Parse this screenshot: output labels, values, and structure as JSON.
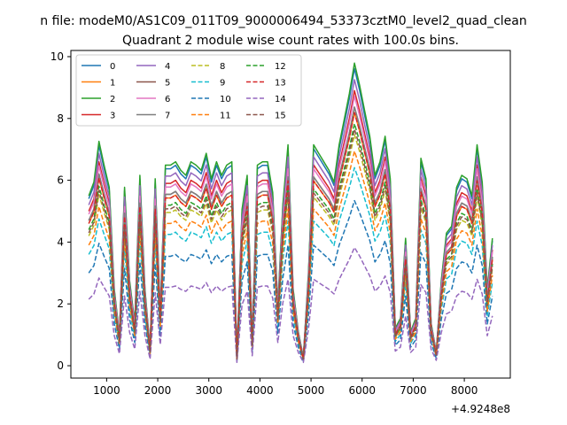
{
  "suptitle": "n file: modeM0/AS1C09_011T09_9000006494_53373cztM0_level2_quad_clean",
  "chart_data": {
    "type": "line",
    "title": "Quadrant 2 module wise count rates with 100.0s bins.",
    "x_offset_label": "+4.9248e8",
    "xlim": [
      300,
      8900
    ],
    "ylim": [
      -0.4,
      10.2
    ],
    "xticks": [
      1000,
      2000,
      3000,
      4000,
      5000,
      6000,
      7000,
      8000
    ],
    "yticks": [
      0,
      2,
      4,
      6,
      8,
      10
    ],
    "legend": {
      "position": "top-left",
      "ncol": 4
    },
    "x": [
      650,
      750,
      850,
      950,
      1050,
      1150,
      1250,
      1350,
      1450,
      1550,
      1650,
      1750,
      1850,
      1950,
      2050,
      2150,
      2250,
      2350,
      2450,
      2550,
      2650,
      2750,
      2850,
      2950,
      3050,
      3150,
      3250,
      3350,
      3450,
      3550,
      3650,
      3750,
      3850,
      3950,
      4050,
      4150,
      4250,
      4350,
      4450,
      4550,
      4650,
      4750,
      4850,
      4950,
      5050,
      5150,
      5250,
      5350,
      5450,
      5550,
      5650,
      5750,
      5850,
      5950,
      6050,
      6150,
      6250,
      6350,
      6450,
      6550,
      6650,
      6750,
      6850,
      6950,
      7050,
      7150,
      7250,
      7350,
      7450,
      7550,
      7650,
      7750,
      7850,
      7950,
      8050,
      8150,
      8250,
      8350,
      8450,
      8550
    ],
    "base": [
      1.0,
      1.08,
      1.32,
      1.18,
      1.05,
      0.45,
      0.18,
      1.05,
      0.5,
      0.25,
      1.12,
      0.45,
      0.1,
      1.1,
      0.32,
      1.18,
      1.18,
      1.2,
      1.15,
      1.12,
      1.2,
      1.18,
      1.15,
      1.25,
      1.1,
      1.2,
      1.12,
      1.18,
      1.2,
      0.05,
      0.92,
      1.12,
      0.15,
      1.18,
      1.2,
      1.2,
      1.02,
      0.35,
      0.95,
      1.3,
      0.45,
      0.2,
      0.05,
      0.55,
      1.3,
      1.25,
      1.2,
      1.15,
      1.08,
      1.3,
      1.45,
      1.6,
      1.78,
      1.65,
      1.5,
      1.35,
      1.12,
      1.2,
      1.35,
      1.1,
      0.22,
      0.28,
      0.75,
      0.2,
      0.28,
      1.22,
      1.1,
      0.25,
      0.08,
      0.5,
      0.78,
      0.82,
      1.05,
      1.12,
      1.1,
      1.0,
      1.3,
      1.08,
      0.45,
      0.75
    ],
    "series": [
      {
        "name": "0",
        "scale": 5.4,
        "color": "#1f77b4",
        "style": "solid"
      },
      {
        "name": "1",
        "scale": 4.6,
        "color": "#ff7f0e",
        "style": "solid"
      },
      {
        "name": "2",
        "scale": 5.5,
        "color": "#2ca02c",
        "style": "solid"
      },
      {
        "name": "3",
        "scale": 5.0,
        "color": "#d62728",
        "style": "solid"
      },
      {
        "name": "4",
        "scale": 5.2,
        "color": "#9467bd",
        "style": "solid"
      },
      {
        "name": "5",
        "scale": 4.7,
        "color": "#8c564b",
        "style": "solid"
      },
      {
        "name": "6",
        "scale": 4.9,
        "color": "#e377c2",
        "style": "solid"
      },
      {
        "name": "7",
        "scale": 4.7,
        "color": "#7f7f7f",
        "style": "solid"
      },
      {
        "name": "8",
        "scale": 4.2,
        "color": "#bcbd22",
        "style": "dashed"
      },
      {
        "name": "9",
        "scale": 3.6,
        "color": "#17becf",
        "style": "dashed"
      },
      {
        "name": "10",
        "scale": 3.0,
        "color": "#1f77b4",
        "style": "dashed"
      },
      {
        "name": "11",
        "scale": 3.9,
        "color": "#ff7f0e",
        "style": "dashed"
      },
      {
        "name": "12",
        "scale": 4.4,
        "color": "#2ca02c",
        "style": "dashed"
      },
      {
        "name": "13",
        "scale": 4.6,
        "color": "#d62728",
        "style": "dashed"
      },
      {
        "name": "14",
        "scale": 2.15,
        "color": "#9467bd",
        "style": "dashed"
      },
      {
        "name": "15",
        "scale": 4.3,
        "color": "#8c564b",
        "style": "dashed"
      }
    ]
  }
}
